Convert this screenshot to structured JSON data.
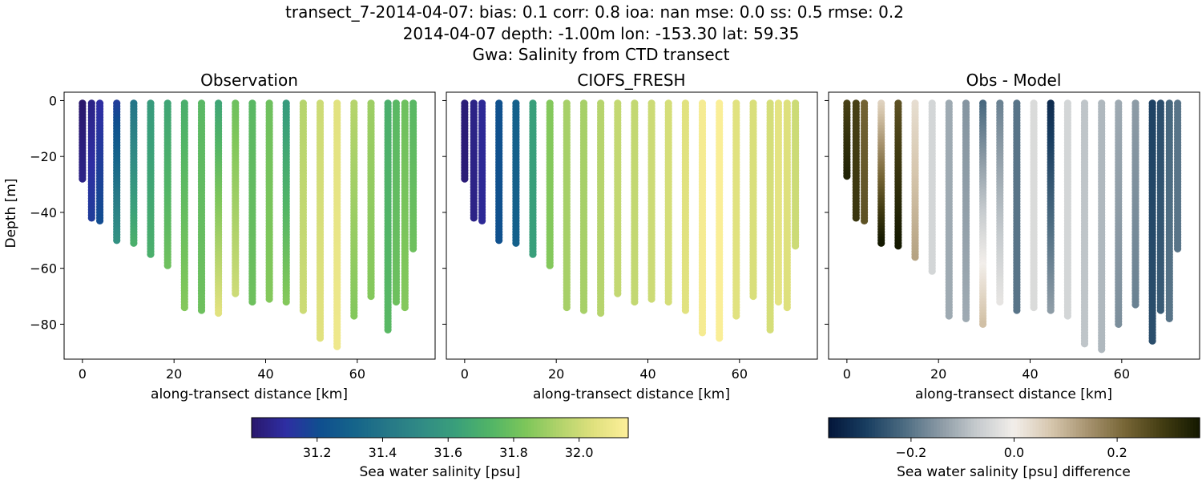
{
  "figure": {
    "title_lines": [
      "transect_7-2014-04-07: bias: 0.1  corr: 0.8  ioa: nan  mse: 0.0  ss: 0.5  rmse: 0.2",
      "2014-04-07 depth: -1.00m lon: -153.30 lat: 59.35",
      "Gwa: Salinity from CTD transect"
    ]
  },
  "chart_data": [
    {
      "type": "scatter",
      "title": "Observation",
      "xlabel": "along-transect distance [km]",
      "ylabel": "Depth [m]",
      "xlim": [
        -4,
        77
      ],
      "ylim": [
        -92.5,
        3
      ],
      "xticks": [
        0,
        20,
        40,
        60
      ],
      "yticks": [
        0,
        -20,
        -40,
        -60,
        -80
      ],
      "xtick_labels": [
        "0",
        "20",
        "40",
        "60"
      ],
      "ytick_labels": [
        "0",
        "−20",
        "−40",
        "−60",
        "−80"
      ],
      "colormap": "haline",
      "clim": [
        31.0,
        32.15
      ],
      "profiles": [
        {
          "x": 0.0,
          "zmin": -28,
          "vtop": 31.0,
          "vbot": 31.05
        },
        {
          "x": 2.0,
          "zmin": -42,
          "vtop": 31.05,
          "vbot": 31.15
        },
        {
          "x": 3.8,
          "zmin": -43,
          "vtop": 31.1,
          "vbot": 31.2
        },
        {
          "x": 7.5,
          "zmin": -50,
          "vtop": 31.15,
          "vbot": 31.55
        },
        {
          "x": 11.2,
          "zmin": -51,
          "vtop": 31.4,
          "vbot": 31.7
        },
        {
          "x": 14.9,
          "zmin": -55,
          "vtop": 31.6,
          "vbot": 31.7
        },
        {
          "x": 18.6,
          "zmin": -59,
          "vtop": 31.65,
          "vbot": 31.8
        },
        {
          "x": 22.3,
          "zmin": -74,
          "vtop": 31.7,
          "vbot": 31.85
        },
        {
          "x": 26.0,
          "zmin": -75,
          "vtop": 31.75,
          "vbot": 31.8
        },
        {
          "x": 29.7,
          "zmin": -76,
          "vtop": 31.65,
          "vbot": 32.05
        },
        {
          "x": 33.4,
          "zmin": -69,
          "vtop": 31.8,
          "vbot": 32.0
        },
        {
          "x": 37.1,
          "zmin": -72,
          "vtop": 31.75,
          "vbot": 31.8
        },
        {
          "x": 40.8,
          "zmin": -71,
          "vtop": 31.8,
          "vbot": 31.85
        },
        {
          "x": 44.5,
          "zmin": -72,
          "vtop": 31.6,
          "vbot": 31.85
        },
        {
          "x": 48.2,
          "zmin": -75,
          "vtop": 31.95,
          "vbot": 32.0
        },
        {
          "x": 51.9,
          "zmin": -85,
          "vtop": 32.0,
          "vbot": 32.05
        },
        {
          "x": 55.6,
          "zmin": -88,
          "vtop": 32.05,
          "vbot": 32.1
        },
        {
          "x": 59.3,
          "zmin": -77,
          "vtop": 31.95,
          "vbot": 31.85
        },
        {
          "x": 63.0,
          "zmin": -70,
          "vtop": 31.9,
          "vbot": 31.85
        },
        {
          "x": 66.7,
          "zmin": -82,
          "vtop": 31.7,
          "vbot": 31.75
        },
        {
          "x": 68.5,
          "zmin": -72,
          "vtop": 31.75,
          "vbot": 31.8
        },
        {
          "x": 70.4,
          "zmin": -74,
          "vtop": 31.8,
          "vbot": 31.85
        },
        {
          "x": 72.2,
          "zmin": -53,
          "vtop": 31.75,
          "vbot": 31.8
        }
      ]
    },
    {
      "type": "scatter",
      "title": "CIOFS_FRESH",
      "xlabel": "along-transect distance [km]",
      "ylabel": "",
      "xlim": [
        -4,
        77
      ],
      "ylim": [
        -92.5,
        3
      ],
      "xticks": [
        0,
        20,
        40,
        60
      ],
      "yticks": [
        0,
        -20,
        -40,
        -60,
        -80
      ],
      "xtick_labels": [
        "0",
        "20",
        "40",
        "60"
      ],
      "colormap": "haline",
      "clim": [
        31.0,
        32.15
      ],
      "profiles": [
        {
          "x": 0.0,
          "zmin": -28,
          "vtop": 31.02,
          "vbot": 31.02
        },
        {
          "x": 2.0,
          "zmin": -42,
          "vtop": 31.05,
          "vbot": 31.05
        },
        {
          "x": 3.8,
          "zmin": -43,
          "vtop": 31.08,
          "vbot": 31.08
        },
        {
          "x": 7.5,
          "zmin": -50,
          "vtop": 31.22,
          "vbot": 31.22
        },
        {
          "x": 11.2,
          "zmin": -51,
          "vtop": 31.3,
          "vbot": 31.3
        },
        {
          "x": 14.9,
          "zmin": -55,
          "vtop": 31.62,
          "vbot": 31.62
        },
        {
          "x": 18.6,
          "zmin": -59,
          "vtop": 31.85,
          "vbot": 31.85
        },
        {
          "x": 22.3,
          "zmin": -74,
          "vtop": 31.92,
          "vbot": 31.92
        },
        {
          "x": 26.0,
          "zmin": -75,
          "vtop": 31.92,
          "vbot": 31.92
        },
        {
          "x": 29.7,
          "zmin": -76,
          "vtop": 31.95,
          "vbot": 31.95
        },
        {
          "x": 33.4,
          "zmin": -69,
          "vtop": 31.98,
          "vbot": 31.98
        },
        {
          "x": 37.1,
          "zmin": -72,
          "vtop": 31.98,
          "vbot": 31.98
        },
        {
          "x": 40.8,
          "zmin": -71,
          "vtop": 32.0,
          "vbot": 32.0
        },
        {
          "x": 44.5,
          "zmin": -72,
          "vtop": 32.02,
          "vbot": 32.02
        },
        {
          "x": 48.2,
          "zmin": -75,
          "vtop": 32.05,
          "vbot": 32.05
        },
        {
          "x": 51.9,
          "zmin": -83,
          "vtop": 32.12,
          "vbot": 32.12
        },
        {
          "x": 55.6,
          "zmin": -85,
          "vtop": 32.14,
          "vbot": 32.14
        },
        {
          "x": 59.3,
          "zmin": -77,
          "vtop": 32.05,
          "vbot": 32.05
        },
        {
          "x": 63.0,
          "zmin": -70,
          "vtop": 32.03,
          "vbot": 32.03
        },
        {
          "x": 66.7,
          "zmin": -82,
          "vtop": 32.02,
          "vbot": 32.02
        },
        {
          "x": 68.5,
          "zmin": -72,
          "vtop": 32.06,
          "vbot": 32.06
        },
        {
          "x": 70.4,
          "zmin": -74,
          "vtop": 32.04,
          "vbot": 32.04
        },
        {
          "x": 72.2,
          "zmin": -52,
          "vtop": 32.0,
          "vbot": 32.0
        }
      ]
    },
    {
      "type": "scatter",
      "title": "Obs - Model",
      "xlabel": "along-transect distance [km]",
      "ylabel": "",
      "xlim": [
        -4,
        77
      ],
      "ylim": [
        -92.5,
        3
      ],
      "xticks": [
        0,
        20,
        40,
        60
      ],
      "yticks": [
        0,
        -20,
        -40,
        -60,
        -80
      ],
      "xtick_labels": [
        "0",
        "20",
        "40",
        "60"
      ],
      "colormap": "diff",
      "clim": [
        -0.36,
        0.36
      ],
      "profiles": [
        {
          "x": 0.0,
          "zmin": -27,
          "vtop": 0.28,
          "vbot": 0.34
        },
        {
          "x": 2.0,
          "zmin": -42,
          "vtop": 0.28,
          "vbot": 0.3
        },
        {
          "x": 3.8,
          "zmin": -43,
          "vtop": 0.22,
          "vbot": 0.25
        },
        {
          "x": 7.5,
          "zmin": -51,
          "vtop": 0.05,
          "vbot": 0.36
        },
        {
          "x": 11.2,
          "zmin": -52,
          "vtop": 0.25,
          "vbot": 0.36
        },
        {
          "x": 14.9,
          "zmin": -56,
          "vtop": 0.03,
          "vbot": 0.12
        },
        {
          "x": 18.6,
          "zmin": -61,
          "vtop": -0.05,
          "vbot": -0.05
        },
        {
          "x": 22.3,
          "zmin": -77,
          "vtop": -0.12,
          "vbot": -0.12
        },
        {
          "x": 26.0,
          "zmin": -78,
          "vtop": -0.15,
          "vbot": -0.12
        },
        {
          "x": 29.7,
          "zmin": -80,
          "vtop": -0.22,
          "vbot": 0.08
        },
        {
          "x": 33.4,
          "zmin": -72,
          "vtop": -0.18,
          "vbot": -0.02
        },
        {
          "x": 37.1,
          "zmin": -75,
          "vtop": -0.2,
          "vbot": -0.2
        },
        {
          "x": 40.8,
          "zmin": -74,
          "vtop": -0.04,
          "vbot": -0.04
        },
        {
          "x": 44.5,
          "zmin": -75,
          "vtop": -0.32,
          "vbot": -0.14
        },
        {
          "x": 48.2,
          "zmin": -77,
          "vtop": -0.05,
          "vbot": -0.05
        },
        {
          "x": 51.9,
          "zmin": -87,
          "vtop": -0.08,
          "vbot": -0.08
        },
        {
          "x": 55.6,
          "zmin": -89,
          "vtop": -0.1,
          "vbot": -0.1
        },
        {
          "x": 59.3,
          "zmin": -80,
          "vtop": -0.12,
          "vbot": -0.16
        },
        {
          "x": 63.0,
          "zmin": -73,
          "vtop": -0.14,
          "vbot": -0.18
        },
        {
          "x": 66.7,
          "zmin": -86,
          "vtop": -0.28,
          "vbot": -0.26
        },
        {
          "x": 68.5,
          "zmin": -75,
          "vtop": -0.26,
          "vbot": -0.24
        },
        {
          "x": 70.4,
          "zmin": -78,
          "vtop": -0.22,
          "vbot": -0.2
        },
        {
          "x": 72.2,
          "zmin": -53,
          "vtop": -0.2,
          "vbot": -0.2
        }
      ]
    }
  ],
  "colorbars": [
    {
      "colormap": "haline",
      "range": [
        31.0,
        32.15
      ],
      "ticks": [
        31.2,
        31.4,
        31.6,
        31.8,
        32.0
      ],
      "tick_labels": [
        "31.2",
        "31.4",
        "31.6",
        "31.8",
        "32.0"
      ],
      "label": "Sea water salinity [psu]"
    },
    {
      "colormap": "diff",
      "range": [
        -0.36,
        0.36
      ],
      "ticks": [
        -0.2,
        0.0,
        0.2
      ],
      "tick_labels": [
        "−0.2",
        "0.0",
        "0.2"
      ],
      "label": "Sea water salinity [psu] difference"
    }
  ],
  "colormaps": {
    "haline": [
      "#2a186c",
      "#2e2ea3",
      "#0f4f8f",
      "#15648a",
      "#267887",
      "#318c85",
      "#3aa07a",
      "#52b566",
      "#7dc65a",
      "#b2d36b",
      "#e0e17e",
      "#fdef9a"
    ],
    "diff": [
      "#03163a",
      "#183d60",
      "#4a6a80",
      "#8a99a4",
      "#c6cbce",
      "#f2eeea",
      "#d6c6ad",
      "#a6926e",
      "#766535",
      "#423c12",
      "#141900"
    ]
  }
}
